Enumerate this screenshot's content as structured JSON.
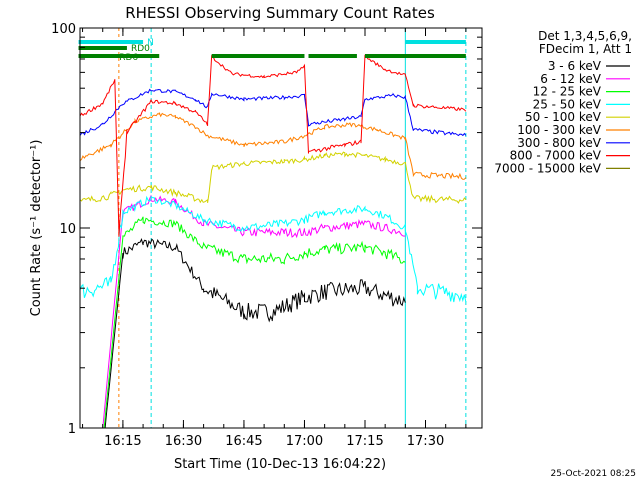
{
  "chart_data": {
    "type": "line",
    "title": "RHESSI Observing Summary Count Rates",
    "xlabel": "Start Time (10-Dec-13 16:04:22)",
    "ylabel": "Count Rate (s⁻¹ detector⁻¹)",
    "yscale": "log",
    "ylim": [
      1,
      100
    ],
    "xlim": [
      "16:04:22",
      "17:44:00"
    ],
    "x_ticks": [
      "16:15",
      "16:30",
      "16:45",
      "17:00",
      "17:15",
      "17:30"
    ],
    "y_ticks": [
      "1",
      "10",
      "100"
    ],
    "legend_header": [
      "Det 1,3,4,5,6,9,",
      "FDecim 1, Att 1"
    ],
    "footer_timestamp": "25-Oct-2021 08:25",
    "flags": [
      {
        "label": "N",
        "color": "#00e0e0",
        "segments": [
          [
            "16:04",
            "16:20"
          ],
          [
            "17:25",
            "17:40"
          ]
        ]
      },
      {
        "label": "RD0",
        "color": "#008000",
        "segments": [
          [
            "16:04",
            "16:16"
          ]
        ]
      },
      {
        "label": "RD6",
        "color": "#008000",
        "segments": [
          [
            "16:04",
            "16:24"
          ],
          [
            "16:37",
            "17:00"
          ],
          [
            "17:01",
            "17:13"
          ],
          [
            "17:15",
            "17:40"
          ]
        ]
      }
    ],
    "markers": {
      "cyan_solid": [
        "16:04",
        "17:25"
      ],
      "cyan_dashed": [
        "16:22",
        "17:40"
      ],
      "orange_dashed": [
        "16:14"
      ]
    },
    "series": [
      {
        "name": "3 - 6 keV",
        "color": "#000000",
        "points": [
          [
            "16:04",
            0
          ],
          [
            "16:15",
            7.5
          ],
          [
            "16:20",
            8.5
          ],
          [
            "16:28",
            8
          ],
          [
            "16:35",
            5
          ],
          [
            "16:45",
            3.8
          ],
          [
            "16:52",
            3.8
          ],
          [
            "17:00",
            4.5
          ],
          [
            "17:05",
            4.8
          ],
          [
            "17:15",
            5
          ],
          [
            "17:20",
            4.6
          ],
          [
            "17:25",
            4.3
          ],
          [
            "17:27",
            null
          ]
        ]
      },
      {
        "name": "6 - 12 keV",
        "color": "#ff00ff",
        "points": [
          [
            "16:04",
            0
          ],
          [
            "16:15",
            12
          ],
          [
            "16:22",
            14
          ],
          [
            "16:28",
            13.5
          ],
          [
            "16:35",
            10.5
          ],
          [
            "16:45",
            9.5
          ],
          [
            "16:55",
            9.5
          ],
          [
            "17:00",
            9.5
          ],
          [
            "17:05",
            10
          ],
          [
            "17:15",
            10.5
          ],
          [
            "17:20",
            10
          ],
          [
            "17:25",
            9.5
          ],
          [
            "17:27",
            null
          ]
        ]
      },
      {
        "name": "12 - 25 keV",
        "color": "#00ff00",
        "points": [
          [
            "16:04",
            0
          ],
          [
            "16:15",
            9
          ],
          [
            "16:20",
            11
          ],
          [
            "16:28",
            10.5
          ],
          [
            "16:35",
            8
          ],
          [
            "16:45",
            7
          ],
          [
            "16:55",
            7
          ],
          [
            "17:00",
            7.5
          ],
          [
            "17:05",
            7.8
          ],
          [
            "17:15",
            8
          ],
          [
            "17:20",
            7.5
          ],
          [
            "17:25",
            6.8
          ],
          [
            "17:27",
            null
          ]
        ]
      },
      {
        "name": "25 - 50 keV",
        "color": "#00ffff",
        "points": [
          [
            "16:04",
            4.8
          ],
          [
            "16:12",
            5.2
          ],
          [
            "16:15",
            12
          ],
          [
            "16:22",
            14
          ],
          [
            "16:28",
            13
          ],
          [
            "16:35",
            11
          ],
          [
            "16:45",
            10
          ],
          [
            "16:55",
            10.5
          ],
          [
            "17:00",
            11
          ],
          [
            "17:05",
            12
          ],
          [
            "17:15",
            12.5
          ],
          [
            "17:20",
            11.5
          ],
          [
            "17:25",
            10
          ],
          [
            "17:28",
            5
          ],
          [
            "17:40",
            4.6
          ]
        ]
      },
      {
        "name": "50 - 100 keV",
        "color": "#d2d200",
        "points": [
          [
            "16:04",
            13.5
          ],
          [
            "16:12",
            14.5
          ],
          [
            "16:15",
            15.5
          ],
          [
            "16:22",
            16
          ],
          [
            "16:28",
            15
          ],
          [
            "16:36",
            13.5
          ],
          [
            "16:37",
            20
          ],
          [
            "16:45",
            21
          ],
          [
            "16:55",
            21.5
          ],
          [
            "17:00",
            22
          ],
          [
            "17:05",
            23
          ],
          [
            "17:10",
            23.5
          ],
          [
            "17:15",
            23
          ],
          [
            "17:20",
            22
          ],
          [
            "17:25",
            21
          ],
          [
            "17:27",
            14
          ],
          [
            "17:40",
            13.8
          ]
        ]
      },
      {
        "name": "100 - 300 keV",
        "color": "#ff8000",
        "points": [
          [
            "16:04",
            22
          ],
          [
            "16:12",
            26
          ],
          [
            "16:18",
            34
          ],
          [
            "16:24",
            37
          ],
          [
            "16:28",
            36
          ],
          [
            "16:33",
            32
          ],
          [
            "16:36",
            29
          ],
          [
            "16:45",
            26
          ],
          [
            "16:55",
            27
          ],
          [
            "17:00",
            29
          ],
          [
            "17:05",
            32
          ],
          [
            "17:12",
            33
          ],
          [
            "17:18",
            31
          ],
          [
            "17:25",
            28
          ],
          [
            "17:27",
            18.5
          ],
          [
            "17:40",
            18
          ]
        ]
      },
      {
        "name": "300 - 800 keV",
        "color": "#0000ff",
        "points": [
          [
            "16:04",
            29
          ],
          [
            "16:10",
            33
          ],
          [
            "16:15",
            42
          ],
          [
            "16:22",
            49
          ],
          [
            "16:28",
            48
          ],
          [
            "16:33",
            44
          ],
          [
            "16:36",
            40
          ],
          [
            "16:37",
            47
          ],
          [
            "16:45",
            44
          ],
          [
            "16:55",
            45
          ],
          [
            "17:00",
            46
          ],
          [
            "17:01",
            33
          ],
          [
            "17:10",
            35
          ],
          [
            "17:14",
            36
          ],
          [
            "17:15",
            44
          ],
          [
            "17:22",
            46
          ],
          [
            "17:25",
            45
          ],
          [
            "17:27",
            31
          ],
          [
            "17:40",
            29
          ]
        ]
      },
      {
        "name": "800 - 7000 keV",
        "color": "#ff0000",
        "points": [
          [
            "16:04",
            36
          ],
          [
            "16:10",
            42
          ],
          [
            "16:13",
            55
          ],
          [
            "16:14",
            9.5
          ],
          [
            "16:16",
            30
          ],
          [
            "16:22",
            43
          ],
          [
            "16:28",
            42
          ],
          [
            "16:33",
            38
          ],
          [
            "16:36",
            33
          ],
          [
            "16:37",
            72
          ],
          [
            "16:42",
            59
          ],
          [
            "16:50",
            57
          ],
          [
            "16:58",
            60
          ],
          [
            "17:00",
            64
          ],
          [
            "17:01",
            24
          ],
          [
            "17:10",
            26
          ],
          [
            "17:14",
            27
          ],
          [
            "17:15",
            72
          ],
          [
            "17:20",
            62
          ],
          [
            "17:25",
            58
          ],
          [
            "17:27",
            41
          ],
          [
            "17:40",
            39
          ]
        ]
      },
      {
        "name": "7000 - 15000 keV",
        "color": "#808000",
        "points": []
      }
    ]
  }
}
